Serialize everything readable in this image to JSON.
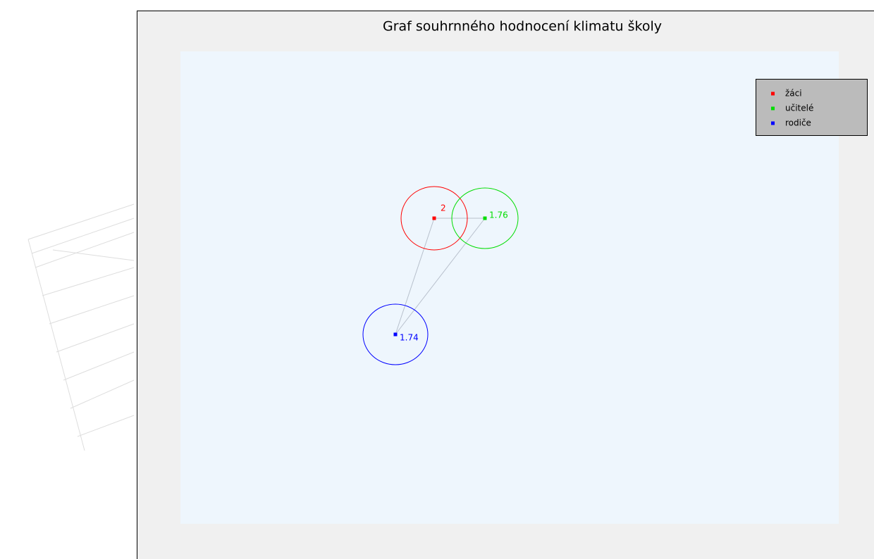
{
  "chart_data": {
    "type": "circles",
    "title": "Graf souhrnného hodnocení klimatu školy",
    "series": [
      {
        "name": "žáci",
        "color": "#ff0000",
        "values": [
          2
        ]
      },
      {
        "name": "učitelé",
        "color": "#00dd00",
        "values": [
          1.76
        ]
      },
      {
        "name": "rodiče",
        "color": "#0000ff",
        "values": [
          1.74
        ]
      }
    ],
    "legend": "top-right"
  }
}
